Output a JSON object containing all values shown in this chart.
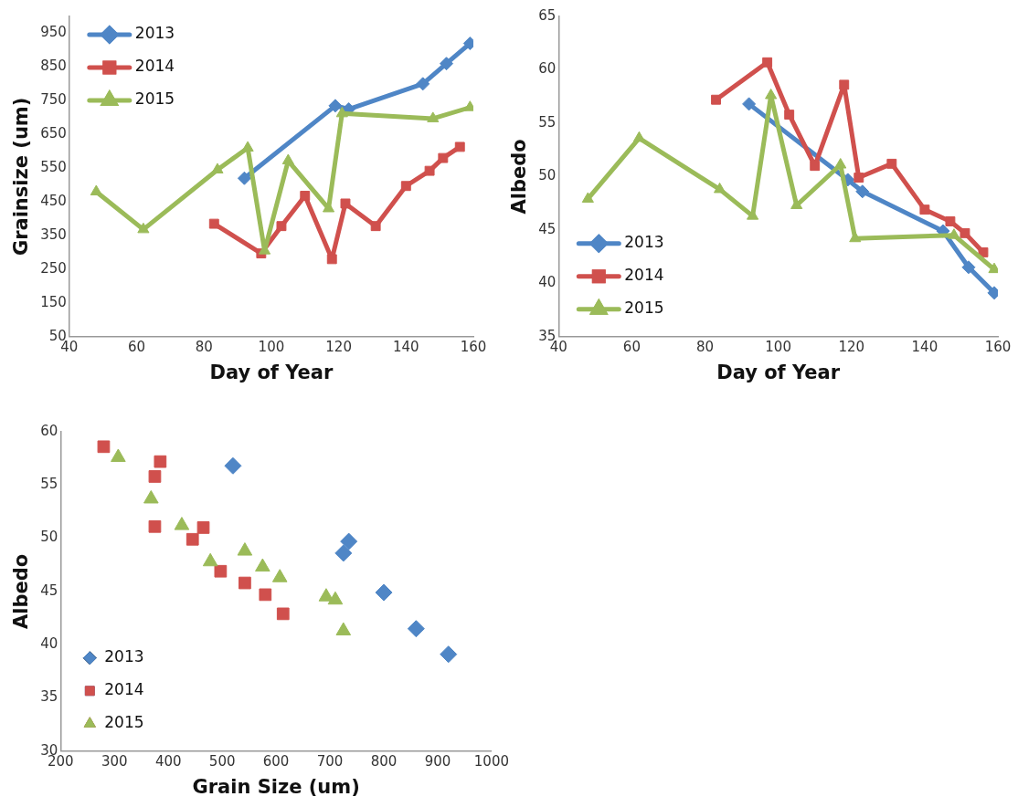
{
  "chart_data": [
    {
      "type": "line",
      "xlabel": "Day of Year",
      "ylabel": "Grainsize (um)",
      "xlim": [
        40,
        160
      ],
      "xticks": [
        40,
        60,
        80,
        100,
        120,
        140,
        160
      ],
      "ylim": [
        50,
        1000
      ],
      "yticks": [
        50,
        150,
        250,
        350,
        450,
        550,
        650,
        750,
        850,
        950
      ],
      "grid": false,
      "legend": "top left",
      "series": [
        {
          "name": "2013",
          "color": "#4f86c6",
          "marker": "diamond",
          "x": [
            92,
            119,
            123,
            145,
            152,
            159
          ],
          "values": [
            520,
            735,
            725,
            800,
            860,
            920
          ]
        },
        {
          "name": "2014",
          "color": "#d0504d",
          "marker": "square",
          "x": [
            83,
            97,
            103,
            110,
            118,
            122,
            131,
            140,
            147,
            151,
            156
          ],
          "values": [
            385,
            297,
            378,
            468,
            280,
            445,
            378,
            497,
            542,
            580,
            613
          ]
        },
        {
          "name": "2015",
          "color": "#9bbb59",
          "marker": "triangle",
          "x": [
            48,
            62,
            84,
            93,
            98,
            105,
            117,
            121,
            148,
            159
          ],
          "values": [
            480,
            368,
            545,
            610,
            305,
            572,
            430,
            712,
            697,
            730
          ]
        }
      ]
    },
    {
      "type": "line",
      "xlabel": "Day of Year",
      "ylabel": "Albedo",
      "xlim": [
        40,
        160
      ],
      "xticks": [
        40,
        60,
        80,
        100,
        120,
        140,
        160
      ],
      "ylim": [
        35,
        65
      ],
      "yticks": [
        35,
        40,
        45,
        50,
        55,
        60,
        65
      ],
      "grid": false,
      "legend": "bottom left",
      "series": [
        {
          "name": "2013",
          "color": "#4f86c6",
          "marker": "diamond",
          "x": [
            92,
            119,
            123,
            145,
            152,
            159
          ],
          "values": [
            56.8,
            49.7,
            48.6,
            44.9,
            41.5,
            39.1
          ]
        },
        {
          "name": "2014",
          "color": "#d0504d",
          "marker": "square",
          "x": [
            83,
            97,
            103,
            110,
            118,
            122,
            131,
            140,
            147,
            151,
            156
          ],
          "values": [
            57.2,
            60.7,
            55.8,
            51.0,
            58.6,
            49.9,
            51.2,
            46.9,
            45.8,
            44.7,
            42.9
          ]
        },
        {
          "name": "2015",
          "color": "#9bbb59",
          "marker": "triangle",
          "x": [
            48,
            62,
            84,
            93,
            98,
            105,
            117,
            121,
            148,
            159
          ],
          "values": [
            47.9,
            53.6,
            48.8,
            46.3,
            57.6,
            47.3,
            51.1,
            44.2,
            44.5,
            41.3
          ]
        }
      ]
    },
    {
      "type": "scatter",
      "xlabel": "Grain Size (um)",
      "ylabel": "Albedo",
      "xlim": [
        200,
        1000
      ],
      "xticks": [
        200,
        300,
        400,
        500,
        600,
        700,
        800,
        900,
        1000
      ],
      "ylim": [
        30,
        60
      ],
      "yticks": [
        30,
        35,
        40,
        45,
        50,
        55,
        60
      ],
      "grid": false,
      "legend": "bottom left",
      "series": [
        {
          "name": "2013",
          "color": "#4f86c6",
          "marker": "diamond",
          "x": [
            520,
            735,
            725,
            800,
            860,
            920
          ],
          "values": [
            56.8,
            49.7,
            48.6,
            44.9,
            41.5,
            39.1
          ]
        },
        {
          "name": "2014",
          "color": "#d0504d",
          "marker": "square",
          "x": [
            280,
            385,
            375,
            375,
            465,
            445,
            497,
            542,
            580,
            613
          ],
          "values": [
            58.6,
            57.2,
            55.8,
            51.1,
            51.0,
            49.9,
            46.9,
            45.8,
            44.7,
            42.9
          ]
        },
        {
          "name": "2015",
          "color": "#9bbb59",
          "marker": "triangle",
          "x": [
            307,
            368,
            425,
            478,
            542,
            575,
            607,
            693,
            710,
            725
          ],
          "values": [
            57.6,
            53.7,
            51.2,
            47.8,
            48.8,
            47.3,
            46.3,
            44.5,
            44.2,
            41.3
          ]
        }
      ]
    }
  ]
}
